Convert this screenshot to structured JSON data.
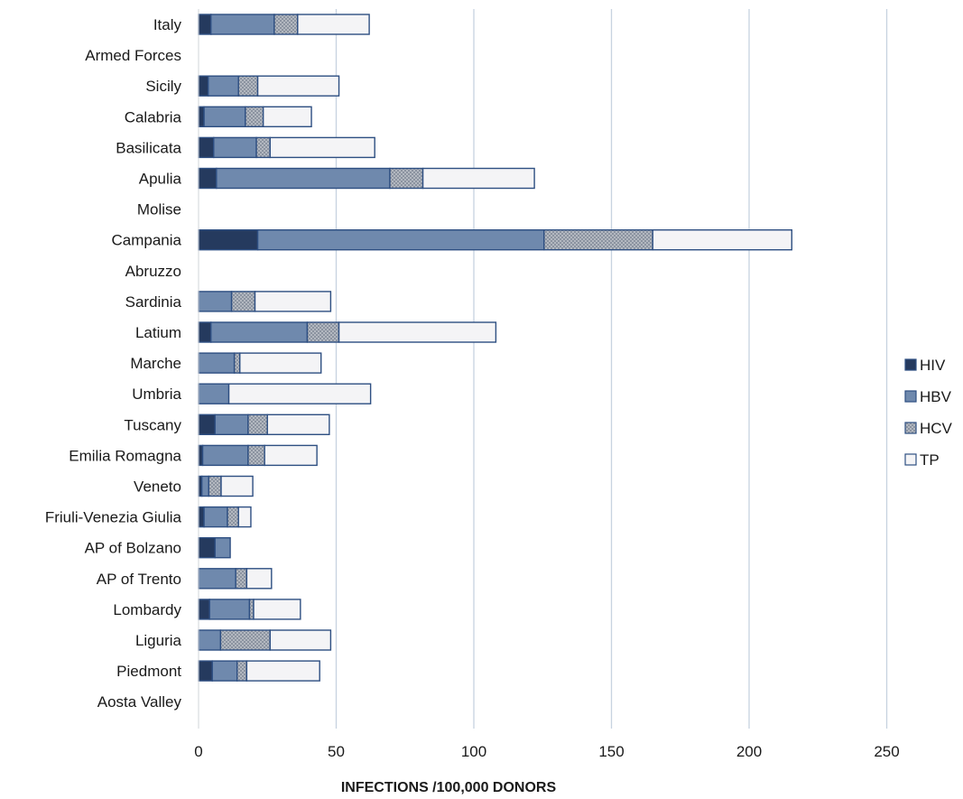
{
  "chart_data": {
    "type": "bar",
    "orientation": "horizontal",
    "stacked": true,
    "xlabel": "INFECTIONS /100,000 DONORS",
    "ylabel": "",
    "title": "",
    "xlim": [
      0,
      250
    ],
    "xticks": [
      0,
      50,
      100,
      150,
      200,
      250
    ],
    "grid": "vertical",
    "legend_position": "right",
    "categories": [
      "Italy",
      "Armed Forces",
      "Sicily",
      "Calabria",
      "Basilicata",
      "Apulia",
      "Molise",
      "Campania",
      "Abruzzo",
      "Sardinia",
      "Latium",
      "Marche",
      "Umbria",
      "Tuscany",
      "Emilia Romagna",
      "Veneto",
      "Friuli-Venezia Giulia",
      "AP of  Bolzano",
      "AP of Trento",
      "Lombardy",
      "Liguria",
      "Piedmont",
      "Aosta Valley"
    ],
    "series": [
      {
        "name": "HIV",
        "color": "#253a5e",
        "values": [
          4.5,
          0,
          3.5,
          2,
          5.5,
          6.5,
          0,
          21.5,
          0,
          0,
          4.5,
          0,
          0,
          6,
          1.5,
          1.2,
          2,
          6,
          0,
          4,
          0,
          5,
          0
        ]
      },
      {
        "name": "HBV",
        "color": "#6f89ad",
        "values": [
          23,
          0,
          11,
          15,
          15.5,
          63,
          0,
          104,
          0,
          12,
          35,
          13,
          11,
          12,
          16.5,
          2.5,
          8.5,
          5.5,
          13.5,
          14.5,
          8,
          9,
          0
        ]
      },
      {
        "name": "HCV",
        "color": "#b3b8c0",
        "values": [
          8.5,
          0,
          7,
          6.5,
          5,
          12,
          0,
          39.5,
          0,
          8.5,
          11.5,
          2,
          0,
          7,
          6,
          4.5,
          4,
          0,
          4,
          1.5,
          18,
          3.5,
          0
        ]
      },
      {
        "name": "TP",
        "color": "#f4f4f6",
        "values": [
          26,
          0,
          29.5,
          17.5,
          38,
          40.5,
          0,
          50.5,
          0,
          27.5,
          57,
          29.5,
          51.5,
          22.5,
          19,
          11.5,
          4.5,
          0,
          9,
          17,
          22,
          26.5,
          0
        ]
      }
    ]
  }
}
